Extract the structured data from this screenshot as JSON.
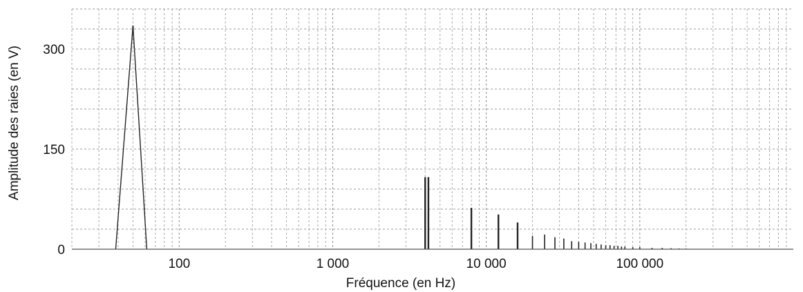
{
  "chart_data": {
    "type": "line",
    "title": "",
    "xlabel": "Fréquence (en Hz)",
    "ylabel": "Amplitude des raies (en V)",
    "x_scale": "log",
    "xlim": [
      20,
      1000000
    ],
    "ylim": [
      0,
      360
    ],
    "grid": true,
    "x_tick_labels": [
      {
        "value": 100,
        "label": "100"
      },
      {
        "value": 1000,
        "label": "1 000"
      },
      {
        "value": 10000,
        "label": "10 000"
      },
      {
        "value": 100000,
        "label": "100 000"
      }
    ],
    "y_tick_labels": [
      {
        "value": 0,
        "label": "0"
      },
      {
        "value": 150,
        "label": "150"
      },
      {
        "value": 300,
        "label": "300"
      }
    ],
    "series": [
      {
        "points": [
          {
            "x": 50,
            "y": 335
          },
          {
            "x": 4000,
            "y": 108
          },
          {
            "x": 4200,
            "y": 108
          },
          {
            "x": 8000,
            "y": 62
          },
          {
            "x": 12000,
            "y": 52
          },
          {
            "x": 16000,
            "y": 40
          },
          {
            "x": 20000,
            "y": 20
          },
          {
            "x": 24000,
            "y": 22
          },
          {
            "x": 28000,
            "y": 18
          },
          {
            "x": 32000,
            "y": 16
          },
          {
            "x": 36000,
            "y": 12
          },
          {
            "x": 40000,
            "y": 11
          },
          {
            "x": 44000,
            "y": 10
          },
          {
            "x": 48000,
            "y": 9
          },
          {
            "x": 52000,
            "y": 8
          },
          {
            "x": 56000,
            "y": 7
          },
          {
            "x": 60000,
            "y": 6
          },
          {
            "x": 64000,
            "y": 6
          },
          {
            "x": 68000,
            "y": 5
          },
          {
            "x": 72000,
            "y": 5
          },
          {
            "x": 76000,
            "y": 4
          },
          {
            "x": 80000,
            "y": 4
          },
          {
            "x": 90000,
            "y": 3
          },
          {
            "x": 100000,
            "y": 3
          },
          {
            "x": 120000,
            "y": 2
          },
          {
            "x": 140000,
            "y": 2
          },
          {
            "x": 160000,
            "y": 1.5
          },
          {
            "x": 180000,
            "y": 1.2
          },
          {
            "x": 200000,
            "y": 1
          }
        ]
      }
    ]
  }
}
